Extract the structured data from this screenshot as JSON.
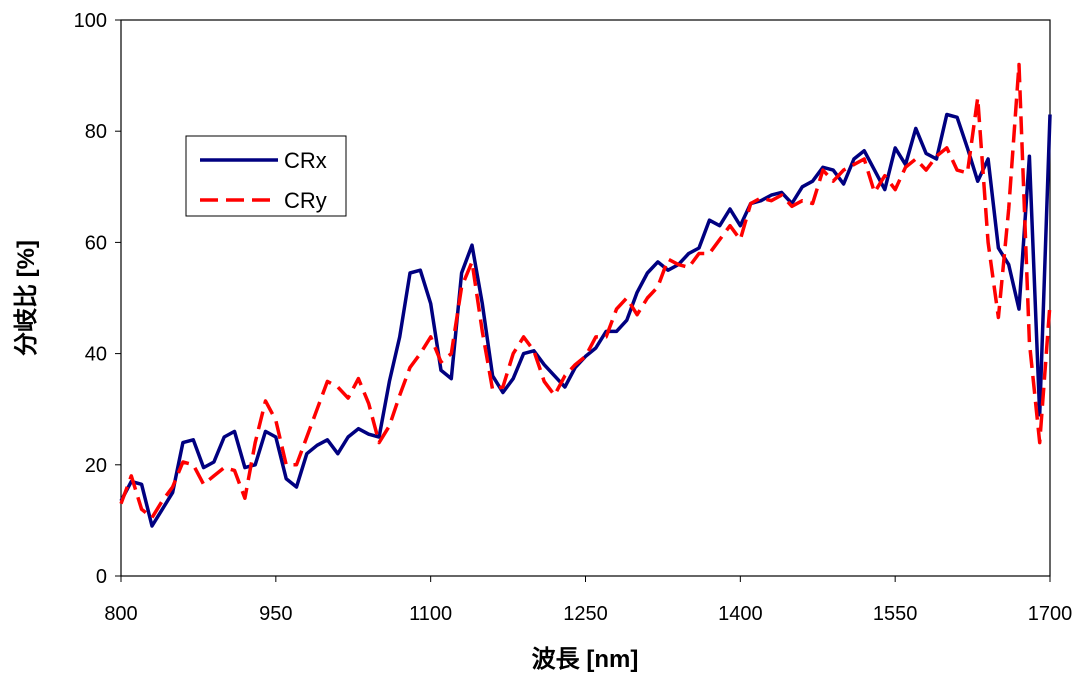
{
  "chart_data": {
    "type": "line",
    "title": "",
    "xlabel": "波長 [nm]",
    "ylabel": "分岐比 [%]",
    "xlim": [
      800,
      1700
    ],
    "ylim": [
      0,
      100
    ],
    "xticks": [
      800,
      950,
      1100,
      1250,
      1400,
      1550,
      1700
    ],
    "yticks": [
      0,
      20,
      40,
      60,
      80,
      100
    ],
    "grid": false,
    "legend": "left, upper-middle",
    "series": [
      {
        "name": "CRx",
        "color": "#000080",
        "dash": "solid",
        "x": [
          800,
          810,
          820,
          830,
          840,
          850,
          860,
          870,
          880,
          890,
          900,
          910,
          920,
          930,
          940,
          950,
          960,
          970,
          980,
          990,
          1000,
          1010,
          1020,
          1030,
          1040,
          1050,
          1060,
          1070,
          1080,
          1090,
          1100,
          1110,
          1120,
          1130,
          1140,
          1150,
          1160,
          1170,
          1180,
          1190,
          1200,
          1210,
          1220,
          1230,
          1240,
          1250,
          1260,
          1270,
          1280,
          1290,
          1300,
          1310,
          1320,
          1330,
          1340,
          1350,
          1360,
          1370,
          1380,
          1390,
          1400,
          1410,
          1420,
          1430,
          1440,
          1450,
          1460,
          1470,
          1480,
          1490,
          1500,
          1510,
          1520,
          1530,
          1540,
          1550,
          1560,
          1570,
          1580,
          1590,
          1600,
          1610,
          1620,
          1630,
          1640,
          1650,
          1660,
          1670,
          1680,
          1690,
          1700
        ],
        "y": [
          13.5,
          17.0,
          16.5,
          9.0,
          12.0,
          15.0,
          24.0,
          24.5,
          19.5,
          20.5,
          25.0,
          26.0,
          19.5,
          20.0,
          26.0,
          25.0,
          17.5,
          16.0,
          22.0,
          23.5,
          24.5,
          22.0,
          25.0,
          26.5,
          25.5,
          25.0,
          35.0,
          43.0,
          54.5,
          55.0,
          49.0,
          37.0,
          35.5,
          54.5,
          59.5,
          49.0,
          36.0,
          33.0,
          35.5,
          40.0,
          40.5,
          38.0,
          36.0,
          34.0,
          37.5,
          39.5,
          41.0,
          44.0,
          44.0,
          46.0,
          51.0,
          54.5,
          56.5,
          55.0,
          56.0,
          58.0,
          59.0,
          64.0,
          63.0,
          66.0,
          63.0,
          67.0,
          67.5,
          68.5,
          69.0,
          67.0,
          70.0,
          71.0,
          73.5,
          73.0,
          70.5,
          75.0,
          76.5,
          73.0,
          69.5,
          77.0,
          74.0,
          80.5,
          76.0,
          75.0,
          83.0,
          82.5,
          77.0,
          71.0,
          75.0,
          59.0,
          56.0,
          48.0,
          75.5,
          29.0,
          83.0
        ]
      },
      {
        "name": "CRy",
        "color": "#ff0000",
        "dash": "dashed",
        "x": [
          800,
          810,
          820,
          830,
          840,
          850,
          860,
          870,
          880,
          890,
          900,
          910,
          920,
          930,
          940,
          950,
          960,
          970,
          980,
          990,
          1000,
          1010,
          1020,
          1030,
          1040,
          1050,
          1060,
          1070,
          1080,
          1090,
          1100,
          1110,
          1120,
          1130,
          1140,
          1150,
          1160,
          1170,
          1180,
          1190,
          1200,
          1210,
          1220,
          1230,
          1240,
          1250,
          1260,
          1270,
          1280,
          1290,
          1300,
          1310,
          1320,
          1330,
          1340,
          1350,
          1360,
          1370,
          1380,
          1390,
          1400,
          1410,
          1420,
          1430,
          1440,
          1450,
          1460,
          1470,
          1480,
          1490,
          1500,
          1510,
          1520,
          1530,
          1540,
          1550,
          1560,
          1570,
          1580,
          1590,
          1600,
          1610,
          1620,
          1630,
          1640,
          1650,
          1660,
          1670,
          1680,
          1690,
          1700
        ],
        "y": [
          13.0,
          18.0,
          12.0,
          10.5,
          13.5,
          16.0,
          20.5,
          20.0,
          16.5,
          18.0,
          19.5,
          19.0,
          14.0,
          24.0,
          31.5,
          28.0,
          20.0,
          20.0,
          25.0,
          30.0,
          35.0,
          34.0,
          32.0,
          35.5,
          31.0,
          24.0,
          27.0,
          32.5,
          37.5,
          40.0,
          43.0,
          38.5,
          40.0,
          52.0,
          56.5,
          44.0,
          33.5,
          34.0,
          40.0,
          43.0,
          40.5,
          35.0,
          32.5,
          36.0,
          38.0,
          39.5,
          43.0,
          43.0,
          48.0,
          50.0,
          47.0,
          50.0,
          52.0,
          57.0,
          56.0,
          55.5,
          58.0,
          58.0,
          60.5,
          63.0,
          60.5,
          67.0,
          68.0,
          67.5,
          68.5,
          66.5,
          67.5,
          67.0,
          73.0,
          71.0,
          73.0,
          74.0,
          75.0,
          69.0,
          72.0,
          69.5,
          73.5,
          75.0,
          73.0,
          75.5,
          77.0,
          73.0,
          72.5,
          86.0,
          60.0,
          46.5,
          66.0,
          92.0,
          42.0,
          24.0,
          49.0
        ]
      }
    ]
  }
}
